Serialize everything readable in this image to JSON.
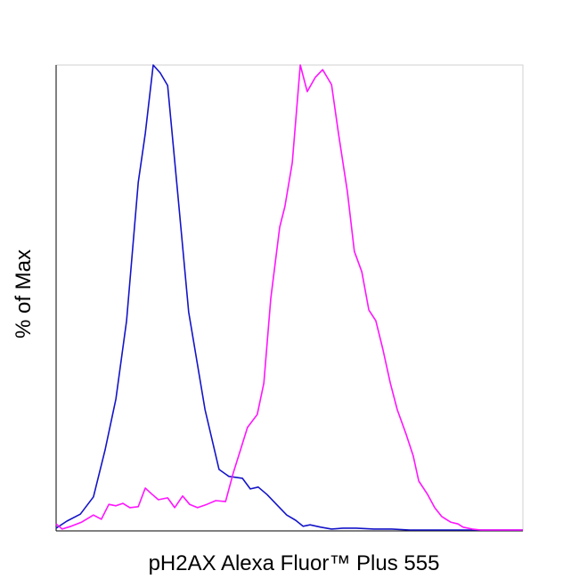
{
  "chart_data": {
    "type": "line",
    "xlabel": "pH2AX Alexa Fluor™ Plus 555",
    "ylabel": "% of Max",
    "xlim": [
      0,
      100
    ],
    "ylim": [
      0,
      100
    ],
    "series": [
      {
        "color": "#1414c8",
        "x": [
          0,
          2.3,
          5.2,
          8.0,
          10.5,
          12.8,
          15.1,
          17.6,
          19.1,
          20.8,
          22.3,
          23.9,
          26.1,
          28.4,
          31.9,
          34.9,
          37.0,
          39.9,
          41.6,
          43.3,
          45.2,
          47.5,
          49.4,
          51.3,
          52.9,
          54.4,
          56.7,
          59.0,
          61.5,
          64.3,
          68.1,
          71.9,
          75.8,
          79.6,
          83.4,
          100
        ],
        "values": [
          0.6,
          2.1,
          3.6,
          7.3,
          17.4,
          28.3,
          45.1,
          74.8,
          85.3,
          100,
          98.3,
          95.6,
          71.9,
          47.0,
          26.0,
          13.2,
          11.7,
          11.3,
          9.0,
          9.4,
          7.8,
          5.4,
          3.4,
          2.3,
          1.0,
          1.3,
          0.8,
          0.4,
          0.6,
          0.6,
          0.4,
          0.4,
          0.2,
          0.2,
          0.2,
          0.2
        ]
      },
      {
        "color": "#ff14ff",
        "x": [
          0,
          1.3,
          3.2,
          5.5,
          8.0,
          9.7,
          11.3,
          12.8,
          14.3,
          15.8,
          17.6,
          19.1,
          20.4,
          21.9,
          23.9,
          25.4,
          27.1,
          28.6,
          30.3,
          32.3,
          34.2,
          36.3,
          38.0,
          39.5,
          41.0,
          43.1,
          44.5,
          46.0,
          47.9,
          49.0,
          50.6,
          52.3,
          53.8,
          55.5,
          57.1,
          59.0,
          60.5,
          62.4,
          63.9,
          65.5,
          67.0,
          68.5,
          70.0,
          71.6,
          73.1,
          75.0,
          76.5,
          77.7,
          79.6,
          81.1,
          82.6,
          84.5,
          86.1,
          87.2,
          89.1,
          91.0,
          100
        ],
        "values": [
          1.5,
          0.4,
          1.0,
          1.9,
          3.4,
          2.5,
          5.7,
          5.4,
          5.9,
          5.0,
          5.2,
          9.2,
          8.0,
          6.7,
          7.1,
          5.0,
          7.5,
          5.7,
          5.0,
          5.7,
          6.5,
          6.3,
          12.6,
          17.4,
          22.2,
          25.0,
          31.7,
          49.9,
          65.2,
          69.6,
          79.0,
          100,
          94.3,
          97.3,
          99.0,
          95.8,
          85.3,
          72.8,
          60.0,
          55.6,
          47.4,
          45.1,
          39.0,
          31.7,
          26.0,
          20.7,
          16.1,
          10.7,
          7.8,
          5.0,
          3.1,
          1.9,
          1.5,
          0.8,
          0.4,
          0.2,
          0.2
        ]
      }
    ]
  }
}
